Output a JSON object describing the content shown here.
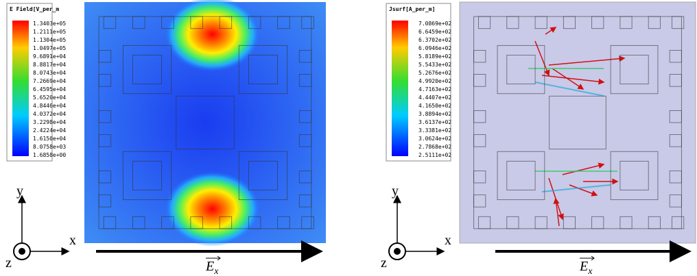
{
  "panels": [
    {
      "legend": {
        "title": "E Field[V_per_m",
        "labels": [
          "1.3403e+05",
          "1.2111e+05",
          "1.1304e+05",
          "1.0497e+05",
          "9.6891e+04",
          "8.8817e+04",
          "8.0743e+04",
          "7.2669e+04",
          "6.4595e+04",
          "5.6520e+04",
          "4.8446e+04",
          "4.0372e+04",
          "3.2298e+04",
          "2.4224e+04",
          "1.6150e+04",
          "8.0758e+03",
          "1.6858e+00"
        ]
      },
      "axes": {
        "x": "x",
        "y": "y",
        "z": "z"
      },
      "field": {
        "symbol": "E",
        "subscript": "x"
      }
    },
    {
      "legend": {
        "title": "Jsurf[A_per_m]",
        "labels": [
          "7.0869e+02",
          "6.6459e+02",
          "6.3702e+02",
          "6.0946e+02",
          "5.8189e+02",
          "5.5433e+02",
          "5.2676e+02",
          "4.9920e+02",
          "4.7163e+02",
          "4.4407e+02",
          "4.1650e+02",
          "3.8894e+02",
          "3.6137e+02",
          "3.3381e+02",
          "3.0624e+02",
          "2.7868e+02",
          "2.5111e+02"
        ]
      },
      "axes": {
        "x": "x",
        "y": "y",
        "z": "z"
      },
      "field": {
        "symbol": "E",
        "subscript": "x"
      }
    }
  ]
}
